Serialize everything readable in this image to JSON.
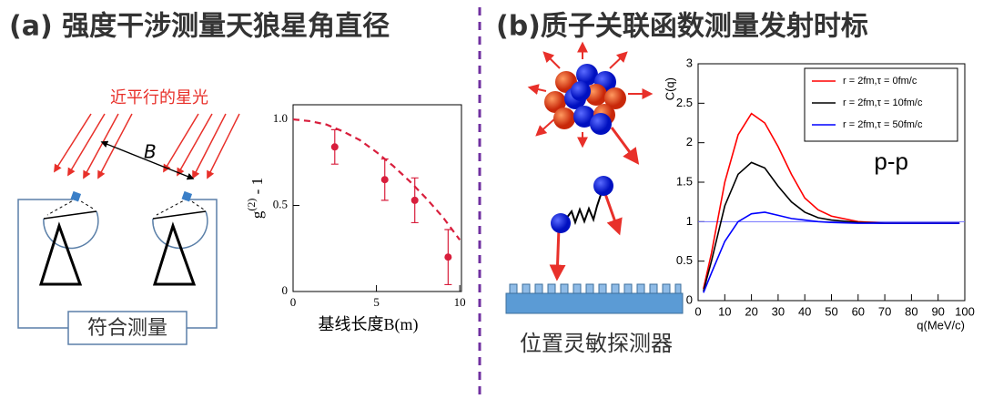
{
  "panels": {
    "a": {
      "title": "(a) 强度干涉测量天狼星角直径",
      "light_label": "近平行的星光",
      "baseline_label": "B",
      "box_label": "符合测量"
    },
    "b": {
      "title": "(b)质子关联函数测量发射时标",
      "detector_label": "位置灵敏探测器"
    }
  },
  "chart_data": [
    {
      "type": "scatter",
      "ylabel": {
        "base": "g",
        "sup": "(2)",
        "rest": " - 1"
      },
      "xlabel": "基线长度B(m)",
      "xlim": [
        0,
        10.1
      ],
      "ylim": [
        0,
        1.085
      ],
      "xticks": [
        0,
        5,
        10
      ],
      "yticks": [
        0,
        0.5,
        {
          "value": 1,
          "label": "1.0"
        }
      ],
      "series": [
        {
          "color": "#d81e3c",
          "x": [
            2.5,
            5.5,
            7.3,
            9.3
          ],
          "values": [
            0.84,
            0.65,
            0.53,
            0.2
          ],
          "errors": [
            0.1,
            0.12,
            0.13,
            0.16
          ]
        },
        {
          "color": "#d81e3c",
          "dash": true,
          "x": [
            0,
            1,
            2,
            3,
            4,
            5,
            6,
            7,
            8,
            9,
            10
          ],
          "values": [
            1.0,
            0.99,
            0.97,
            0.93,
            0.88,
            0.81,
            0.73,
            0.64,
            0.54,
            0.43,
            0.3
          ]
        }
      ]
    },
    {
      "type": "line",
      "ylabel": "C(q)",
      "xlabel": "q(MeV/c)",
      "annotation": "p-p",
      "xlim": [
        0,
        100
      ],
      "ylim": [
        0,
        3
      ],
      "xticks": [
        0,
        10,
        20,
        30,
        40,
        50,
        60,
        70,
        80,
        90,
        100
      ],
      "yticks": [
        0,
        0.5,
        1,
        1.5,
        2,
        2.5,
        3
      ],
      "reference_line": {
        "value": 1,
        "color": "#6f6fff"
      },
      "legend": "top-right",
      "x": [
        2,
        5,
        10,
        15,
        20,
        25,
        30,
        35,
        40,
        45,
        50,
        60,
        70,
        80,
        90,
        98
      ],
      "series": [
        {
          "name": "r = 2fm,τ = 0fm/c",
          "color": "#ff0000",
          "values": [
            0.15,
            0.6,
            1.5,
            2.1,
            2.37,
            2.25,
            1.95,
            1.6,
            1.3,
            1.15,
            1.07,
            1.0,
            0.98,
            0.98,
            0.98,
            0.98
          ]
        },
        {
          "name": "r = 2fm,τ = 10fm/c",
          "color": "#000000",
          "values": [
            0.12,
            0.5,
            1.2,
            1.6,
            1.75,
            1.68,
            1.45,
            1.25,
            1.12,
            1.05,
            1.02,
            0.99,
            0.98,
            0.98,
            0.98,
            0.98
          ]
        },
        {
          "name": "r = 2fm,τ = 50fm/c",
          "color": "#0000ff",
          "values": [
            0.1,
            0.35,
            0.75,
            1.0,
            1.1,
            1.12,
            1.08,
            1.04,
            1.02,
            1.0,
            0.99,
            0.98,
            0.98,
            0.98,
            0.98,
            0.98
          ]
        }
      ]
    }
  ]
}
